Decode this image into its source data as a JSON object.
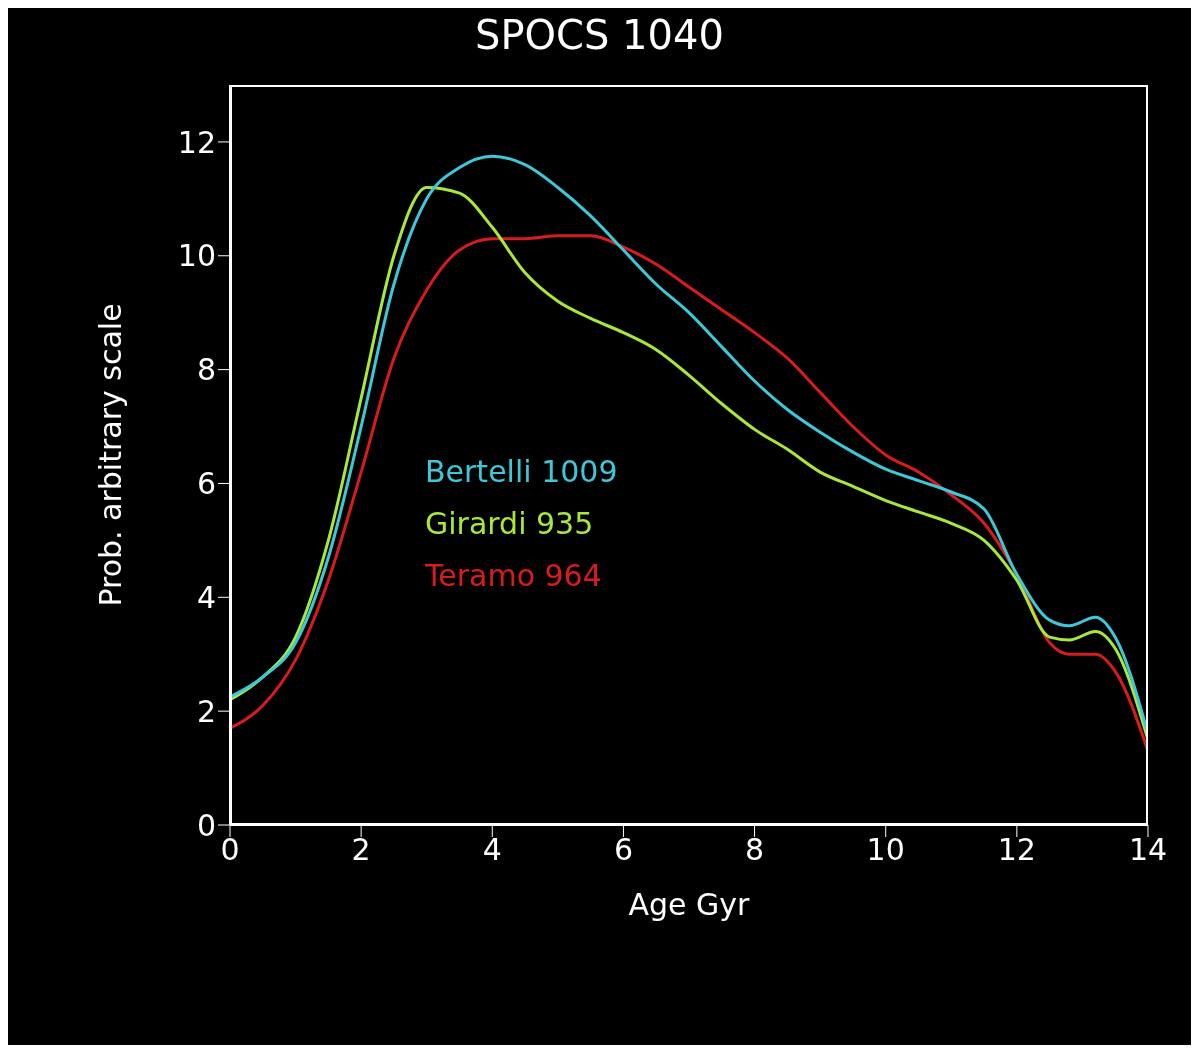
{
  "chart_data": {
    "type": "line",
    "title": "SPOCS 1040",
    "xlabel": "Age Gyr",
    "ylabel": "Prob. arbitrary scale",
    "x": [
      0,
      0.5,
      1,
      1.5,
      2,
      2.5,
      3,
      3.5,
      4,
      4.5,
      5,
      5.5,
      6,
      6.5,
      7,
      7.5,
      8,
      8.5,
      9,
      9.5,
      10,
      10.5,
      11,
      11.5,
      12,
      12.5,
      12.8,
      13.2,
      13.5,
      14
    ],
    "series": [
      {
        "name": "Bertelli 1009",
        "color": "#3cc8d8",
        "values": [
          2.25,
          2.6,
          3.2,
          4.7,
          7.0,
          9.5,
          11.0,
          11.55,
          11.75,
          11.6,
          11.2,
          10.7,
          10.1,
          9.5,
          9.0,
          8.4,
          7.8,
          7.3,
          6.9,
          6.55,
          6.25,
          6.05,
          5.85,
          5.55,
          4.4,
          3.6,
          3.5,
          3.65,
          3.3,
          1.6
        ]
      },
      {
        "name": "Girardi 935",
        "color": "#a8e838",
        "values": [
          2.2,
          2.6,
          3.3,
          5.0,
          7.5,
          10.0,
          11.2,
          11.1,
          10.5,
          9.7,
          9.2,
          8.9,
          8.65,
          8.35,
          7.9,
          7.4,
          6.95,
          6.6,
          6.2,
          5.95,
          5.7,
          5.5,
          5.3,
          5.0,
          4.3,
          3.3,
          3.25,
          3.4,
          3.1,
          1.5
        ]
      },
      {
        "name": "Teramo 964",
        "color": "#d81c1c",
        "values": [
          1.7,
          2.1,
          2.9,
          4.3,
          6.2,
          8.2,
          9.4,
          10.1,
          10.3,
          10.3,
          10.35,
          10.35,
          10.15,
          9.85,
          9.45,
          9.05,
          8.65,
          8.2,
          7.6,
          7.0,
          6.5,
          6.2,
          5.8,
          5.3,
          4.4,
          3.2,
          3.0,
          3.0,
          2.7,
          1.3
        ]
      }
    ],
    "xlim": [
      0,
      14
    ],
    "xticks": [
      0,
      2,
      4,
      6,
      8,
      10,
      12,
      14
    ],
    "ylim": [
      0,
      13
    ],
    "yticks": [
      0,
      2,
      4,
      6,
      8,
      10,
      12
    ],
    "legend": "left",
    "grid": false,
    "marker": "none",
    "line_style": "solid"
  }
}
